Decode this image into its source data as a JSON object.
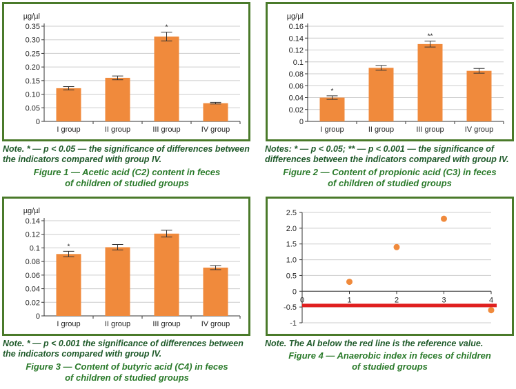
{
  "figures": [
    {
      "note": "Note. * — p < 0.05 — the significance of differences between the indicators compared with group IV.",
      "caption_line1": "Figure 1 — Acetic acid (C2) content in feces",
      "caption_line2": "of children of studied groups"
    },
    {
      "note": "Notes: * — p < 0.05; ** — p < 0.001 — the significance of differences between the indicators compared with group IV.",
      "caption_line1": "Figure 2 — Content of propionic acid (C3) in feces",
      "caption_line2": "of children of studied groups"
    },
    {
      "note": "Note. * — p < 0.001 the significance of differences between the indicators compared with group IV.",
      "caption_line1": "Figure 3 — Content of butyric acid (C4) in feces",
      "caption_line2": "of children of studied groups"
    },
    {
      "note": "Note. The AI below the red line is the reference value.",
      "caption_line1": "Figure 4 — Anaerobic index in feces of children",
      "caption_line2": "of studied groups"
    }
  ],
  "colors": {
    "bar": "#f08a3c",
    "frame": "#4a7a2a",
    "grid": "#cccccc",
    "refline": "#e02020",
    "point": "#f08a3c"
  },
  "chart_data": [
    {
      "type": "bar",
      "ylabel": "µg/µl",
      "categories": [
        "I group",
        "II group",
        "III group",
        "IV group"
      ],
      "values": [
        0.122,
        0.16,
        0.312,
        0.067
      ],
      "errors": [
        0.006,
        0.007,
        0.016,
        0.003
      ],
      "annotations": [
        "",
        "",
        "*",
        ""
      ],
      "ylim": [
        0,
        0.35
      ],
      "yticks": [
        "0",
        "0.05",
        "0.10",
        "0.15",
        "0.20",
        "0.25",
        "0.30",
        "0.35"
      ],
      "grid": true
    },
    {
      "type": "bar",
      "ylabel": "µg/µl",
      "categories": [
        "I group",
        "II group",
        "III group",
        "IV group"
      ],
      "values": [
        0.04,
        0.09,
        0.13,
        0.085
      ],
      "errors": [
        0.003,
        0.004,
        0.005,
        0.004
      ],
      "annotations": [
        "*",
        "",
        "**",
        ""
      ],
      "ylim": [
        0,
        0.16
      ],
      "yticks": [
        "0",
        "0.02",
        "0.04",
        "0.06",
        "0.08",
        "0.1",
        "0.12",
        "0.14",
        "0.16"
      ],
      "grid": true
    },
    {
      "type": "bar",
      "ylabel": "µg/µl",
      "categories": [
        "I group",
        "II group",
        "III group",
        "IV group"
      ],
      "values": [
        0.091,
        0.101,
        0.121,
        0.071
      ],
      "errors": [
        0.004,
        0.004,
        0.005,
        0.003
      ],
      "annotations": [
        "*",
        "",
        "",
        ""
      ],
      "ylim": [
        0,
        0.14
      ],
      "yticks": [
        "0",
        "0.02",
        "0.04",
        "0.06",
        "0.08",
        "0.1",
        "0.12",
        "0.14"
      ],
      "grid": true
    },
    {
      "type": "scatter",
      "x": [
        1,
        2,
        3,
        4
      ],
      "y": [
        0.3,
        1.4,
        2.3,
        -0.6
      ],
      "reference_line": -0.45,
      "xlim": [
        0,
        4
      ],
      "ylim": [
        -1,
        2.5
      ],
      "xticks": [
        "0",
        "1",
        "2",
        "3",
        "4"
      ],
      "yticks": [
        "2.5",
        "2.0",
        "1.5",
        "1.0",
        "0.5",
        "0",
        "-0.5",
        "-1"
      ],
      "grid": true
    }
  ]
}
